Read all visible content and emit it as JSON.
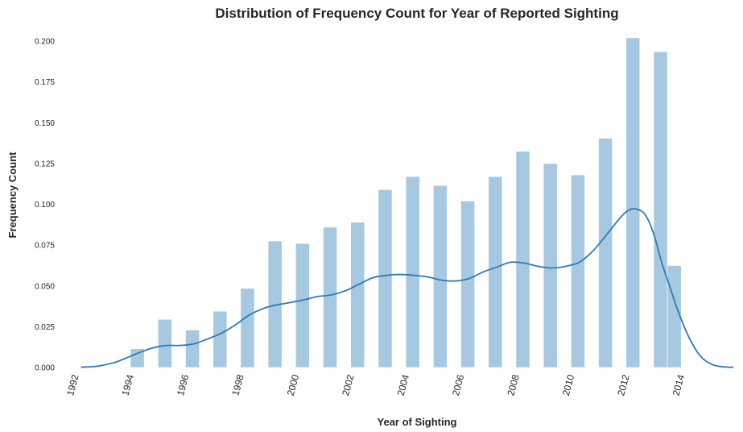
{
  "chart_data": {
    "type": "bar",
    "title": "Distribution of Frequency Count for Year of Reported Sighting",
    "xlabel": "Year of Sighting",
    "ylabel": "Frequency Count",
    "xlim": [
      1991.6,
      2016.1
    ],
    "ylim": [
      0,
      0.2
    ],
    "x_ticks": [
      "1992",
      "1994",
      "1996",
      "1998",
      "2000",
      "2002",
      "2004",
      "2006",
      "2008",
      "2010",
      "2012",
      "2014"
    ],
    "y_ticks": [
      "0.000",
      "0.025",
      "0.050",
      "0.075",
      "0.100",
      "0.125",
      "0.150",
      "0.175",
      "0.200"
    ],
    "grid": false,
    "bar_color": "#a6c8e0",
    "line_color": "#2b7bb9",
    "bins": [
      {
        "start": 1994.0,
        "end": 1994.5,
        "value": 0.0115
      },
      {
        "start": 1995.0,
        "end": 1995.5,
        "value": 0.0295
      },
      {
        "start": 1996.0,
        "end": 1996.5,
        "value": 0.023
      },
      {
        "start": 1997.0,
        "end": 1997.5,
        "value": 0.0345
      },
      {
        "start": 1998.0,
        "end": 1998.5,
        "value": 0.0485
      },
      {
        "start": 1999.0,
        "end": 1999.5,
        "value": 0.0775
      },
      {
        "start": 2000.0,
        "end": 2000.5,
        "value": 0.076
      },
      {
        "start": 2001.0,
        "end": 2001.5,
        "value": 0.086
      },
      {
        "start": 2002.0,
        "end": 2002.5,
        "value": 0.089
      },
      {
        "start": 2003.0,
        "end": 2003.5,
        "value": 0.109
      },
      {
        "start": 2004.0,
        "end": 2004.5,
        "value": 0.117
      },
      {
        "start": 2005.0,
        "end": 2005.5,
        "value": 0.1115
      },
      {
        "start": 2006.0,
        "end": 2006.5,
        "value": 0.102
      },
      {
        "start": 2007.0,
        "end": 2007.5,
        "value": 0.117
      },
      {
        "start": 2008.0,
        "end": 2008.5,
        "value": 0.1325
      },
      {
        "start": 2009.0,
        "end": 2009.5,
        "value": 0.125
      },
      {
        "start": 2010.0,
        "end": 2010.5,
        "value": 0.118
      },
      {
        "start": 2011.0,
        "end": 2011.5,
        "value": 0.1405
      },
      {
        "start": 2012.0,
        "end": 2012.5,
        "value": 0.202
      },
      {
        "start": 2013.0,
        "end": 2013.5,
        "value": 0.1935
      },
      {
        "start": 2013.5,
        "end": 2014.0,
        "value": 0.0625
      }
    ],
    "kde": {
      "x": [
        1992.2,
        1992.8,
        1993.4,
        1993.8,
        1994.3,
        1994.8,
        1995.3,
        1995.8,
        1996.3,
        1996.8,
        1997.3,
        1997.8,
        1998.3,
        1998.8,
        1999.2,
        1999.7,
        2000.3,
        2000.8,
        2001.3,
        2001.8,
        2002.3,
        2002.8,
        2003.3,
        2003.8,
        2004.3,
        2004.8,
        2005.3,
        2005.8,
        2006.3,
        2006.8,
        2007.3,
        2007.8,
        2008.3,
        2008.8,
        2009.3,
        2009.8,
        2010.3,
        2010.8,
        2011.3,
        2011.8,
        2012.1,
        2012.4,
        2012.7,
        2013.0,
        2013.3,
        2013.6,
        2013.9,
        2014.3,
        2014.7,
        2015.1,
        2015.5,
        2015.9
      ],
      "y": [
        0.0002,
        0.0008,
        0.003,
        0.0055,
        0.009,
        0.012,
        0.0135,
        0.0135,
        0.0145,
        0.0175,
        0.021,
        0.026,
        0.032,
        0.036,
        0.038,
        0.0395,
        0.0415,
        0.0435,
        0.0445,
        0.047,
        0.051,
        0.055,
        0.0565,
        0.057,
        0.0565,
        0.0555,
        0.0535,
        0.053,
        0.0545,
        0.0585,
        0.0615,
        0.0645,
        0.064,
        0.062,
        0.061,
        0.062,
        0.0645,
        0.0715,
        0.0815,
        0.092,
        0.0965,
        0.097,
        0.0935,
        0.082,
        0.064,
        0.049,
        0.034,
        0.018,
        0.007,
        0.002,
        0.0005,
        0.0001
      ]
    }
  }
}
